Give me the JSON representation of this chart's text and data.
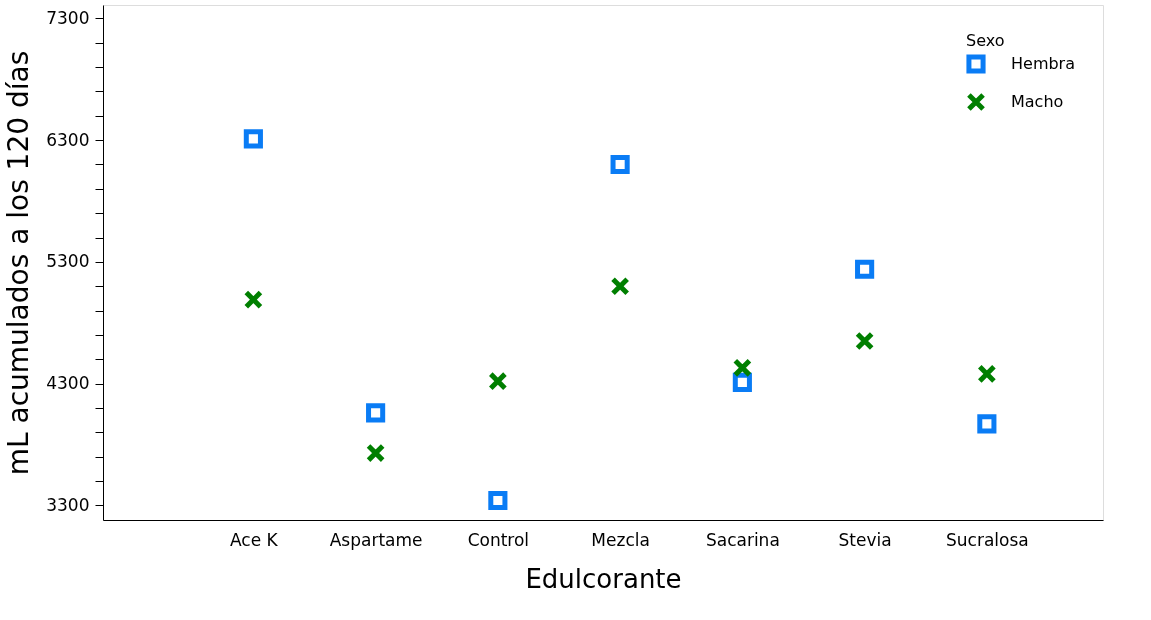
{
  "chart_data": {
    "type": "scatter",
    "xlabel": "Edulcorante",
    "ylabel": "mL acumulados a los 120 días",
    "legend_title": "Sexo",
    "legend": "top right",
    "grid": false,
    "categories": [
      "Ace K",
      "Aspartame",
      "Control",
      "Mezcla",
      "Sacarina",
      "Stevia",
      "Sucralosa"
    ],
    "series": [
      {
        "name": "Hembra",
        "color": "#0a7cf5",
        "marker": "square",
        "values": [
          6310,
          4060,
          3340,
          6100,
          4310,
          5240,
          3970
        ]
      },
      {
        "name": "Macho",
        "color": "#007f00",
        "marker": "cross",
        "values": [
          4990,
          3730,
          4320,
          5100,
          4430,
          4650,
          4380
        ]
      }
    ],
    "ylim": [
      3180,
      7410
    ],
    "yticks": [
      3300,
      {
        "value": 3500,
        "label": null
      },
      {
        "value": 3700,
        "label": null
      },
      {
        "value": 3900,
        "label": null
      },
      {
        "value": 4100,
        "label": null
      },
      4300,
      {
        "value": 4500,
        "label": null
      },
      {
        "value": 4700,
        "label": null
      },
      {
        "value": 4900,
        "label": null
      },
      {
        "value": 5100,
        "label": null
      },
      5300,
      {
        "value": 5500,
        "label": null
      },
      {
        "value": 5700,
        "label": null
      },
      {
        "value": 5900,
        "label": null
      },
      {
        "value": 6100,
        "label": null
      },
      6300,
      {
        "value": 6500,
        "label": null
      },
      {
        "value": 6700,
        "label": null
      },
      {
        "value": 6900,
        "label": null
      },
      {
        "value": 7100,
        "label": null
      },
      7300
    ]
  }
}
